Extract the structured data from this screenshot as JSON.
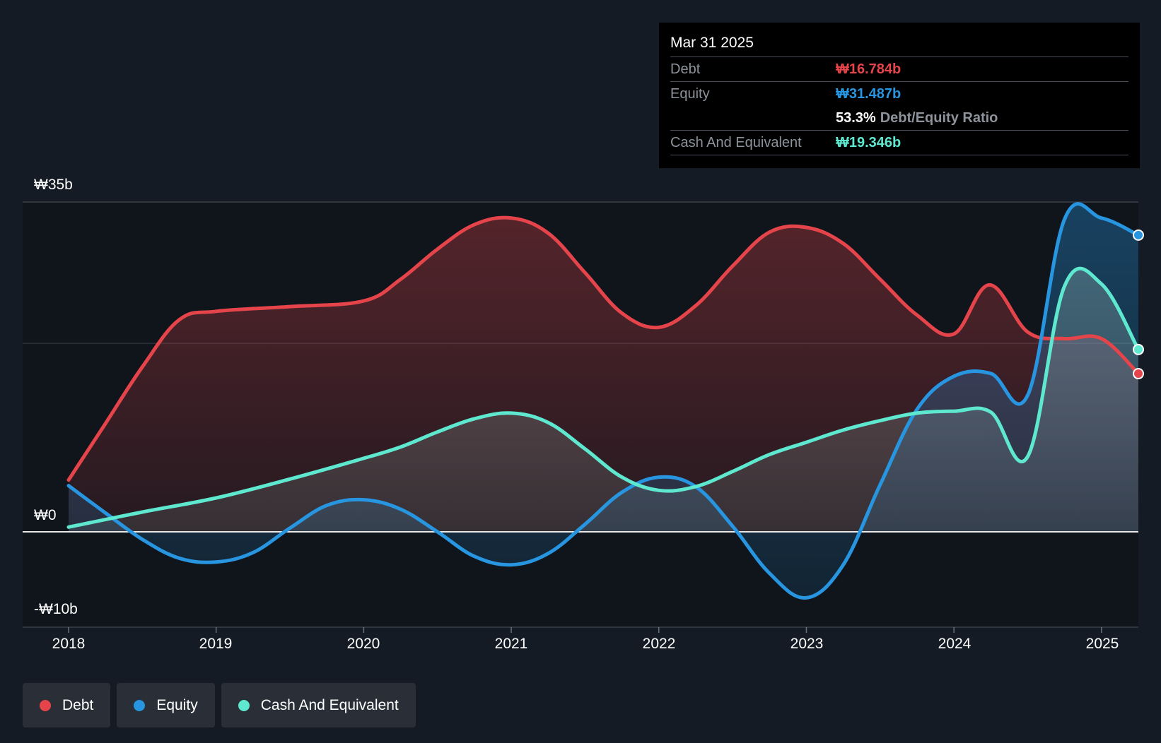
{
  "colors": {
    "debt": "#e5444a",
    "equity": "#2795e0",
    "cash": "#5ee8cf",
    "background": "#151b24"
  },
  "tooltip": {
    "date": "Mar 31 2025",
    "debt_label": "Debt",
    "debt_value": "₩16.784b",
    "equity_label": "Equity",
    "equity_value": "₩31.487b",
    "ratio_value": "53.3%",
    "ratio_label": "Debt/Equity Ratio",
    "cash_label": "Cash And Equivalent",
    "cash_value": "₩19.346b"
  },
  "legend": [
    {
      "label": "Debt",
      "color": "#e5444a"
    },
    {
      "label": "Equity",
      "color": "#2795e0"
    },
    {
      "label": "Cash And Equivalent",
      "color": "#5ee8cf"
    }
  ],
  "chart_data": {
    "type": "area",
    "x_ticks": [
      "2018",
      "2019",
      "2020",
      "2021",
      "2022",
      "2023",
      "2024",
      "2025"
    ],
    "y_ticks": [
      {
        "value": 35,
        "label": "₩35b"
      },
      {
        "value": 0,
        "label": "₩0"
      },
      {
        "value": -10,
        "label": "-₩10b"
      }
    ],
    "ylim": [
      -10,
      35
    ],
    "xlim": [
      2018,
      2025.25
    ],
    "series": [
      {
        "name": "Debt",
        "color": "#e5444a",
        "points": [
          [
            2018.0,
            5.5
          ],
          [
            2018.25,
            11.5
          ],
          [
            2018.5,
            17.5
          ],
          [
            2018.75,
            22.5
          ],
          [
            2019.0,
            23.4
          ],
          [
            2019.5,
            23.9
          ],
          [
            2020.0,
            24.5
          ],
          [
            2020.25,
            26.8
          ],
          [
            2020.5,
            30.0
          ],
          [
            2020.75,
            32.6
          ],
          [
            2021.0,
            33.3
          ],
          [
            2021.25,
            31.7
          ],
          [
            2021.5,
            27.5
          ],
          [
            2021.75,
            23.2
          ],
          [
            2022.0,
            21.7
          ],
          [
            2022.25,
            24.0
          ],
          [
            2022.5,
            28.2
          ],
          [
            2022.75,
            31.8
          ],
          [
            2023.0,
            32.3
          ],
          [
            2023.25,
            30.6
          ],
          [
            2023.5,
            26.8
          ],
          [
            2023.75,
            23.0
          ],
          [
            2024.0,
            21.0
          ],
          [
            2024.24,
            26.2
          ],
          [
            2024.5,
            21.2
          ],
          [
            2024.75,
            20.5
          ],
          [
            2025.0,
            20.5
          ],
          [
            2025.25,
            16.784
          ]
        ]
      },
      {
        "name": "Equity",
        "color": "#2795e0",
        "points": [
          [
            2018.0,
            4.9
          ],
          [
            2018.25,
            2.0
          ],
          [
            2018.5,
            -0.8
          ],
          [
            2018.75,
            -2.8
          ],
          [
            2019.0,
            -3.2
          ],
          [
            2019.25,
            -2.2
          ],
          [
            2019.5,
            0.4
          ],
          [
            2019.75,
            2.8
          ],
          [
            2020.0,
            3.4
          ],
          [
            2020.25,
            2.4
          ],
          [
            2020.5,
            0.0
          ],
          [
            2020.75,
            -2.6
          ],
          [
            2021.0,
            -3.5
          ],
          [
            2021.25,
            -2.3
          ],
          [
            2021.5,
            0.8
          ],
          [
            2021.75,
            4.2
          ],
          [
            2022.0,
            5.8
          ],
          [
            2022.25,
            4.8
          ],
          [
            2022.5,
            0.6
          ],
          [
            2022.75,
            -4.4
          ],
          [
            2023.0,
            -7.0
          ],
          [
            2023.25,
            -3.5
          ],
          [
            2023.5,
            5.0
          ],
          [
            2023.75,
            13.0
          ],
          [
            2024.0,
            16.5
          ],
          [
            2024.25,
            16.8
          ],
          [
            2024.5,
            14.5
          ],
          [
            2024.75,
            33.2
          ],
          [
            2025.0,
            33.3
          ],
          [
            2025.25,
            31.487
          ]
        ]
      },
      {
        "name": "Cash And Equivalent",
        "color": "#5ee8cf",
        "points": [
          [
            2018.0,
            0.5
          ],
          [
            2018.5,
            2.1
          ],
          [
            2019.0,
            3.6
          ],
          [
            2019.5,
            5.6
          ],
          [
            2020.0,
            7.8
          ],
          [
            2020.25,
            9.0
          ],
          [
            2020.5,
            10.6
          ],
          [
            2020.75,
            12.0
          ],
          [
            2021.0,
            12.6
          ],
          [
            2021.25,
            11.6
          ],
          [
            2021.5,
            8.8
          ],
          [
            2021.75,
            5.8
          ],
          [
            2022.0,
            4.4
          ],
          [
            2022.25,
            4.8
          ],
          [
            2022.5,
            6.4
          ],
          [
            2022.75,
            8.2
          ],
          [
            2023.0,
            9.5
          ],
          [
            2023.25,
            10.8
          ],
          [
            2023.5,
            11.8
          ],
          [
            2023.75,
            12.6
          ],
          [
            2024.0,
            12.8
          ],
          [
            2024.25,
            12.7
          ],
          [
            2024.5,
            8.0
          ],
          [
            2024.75,
            26.1
          ],
          [
            2025.0,
            26.3
          ],
          [
            2025.25,
            19.346
          ]
        ]
      }
    ]
  }
}
